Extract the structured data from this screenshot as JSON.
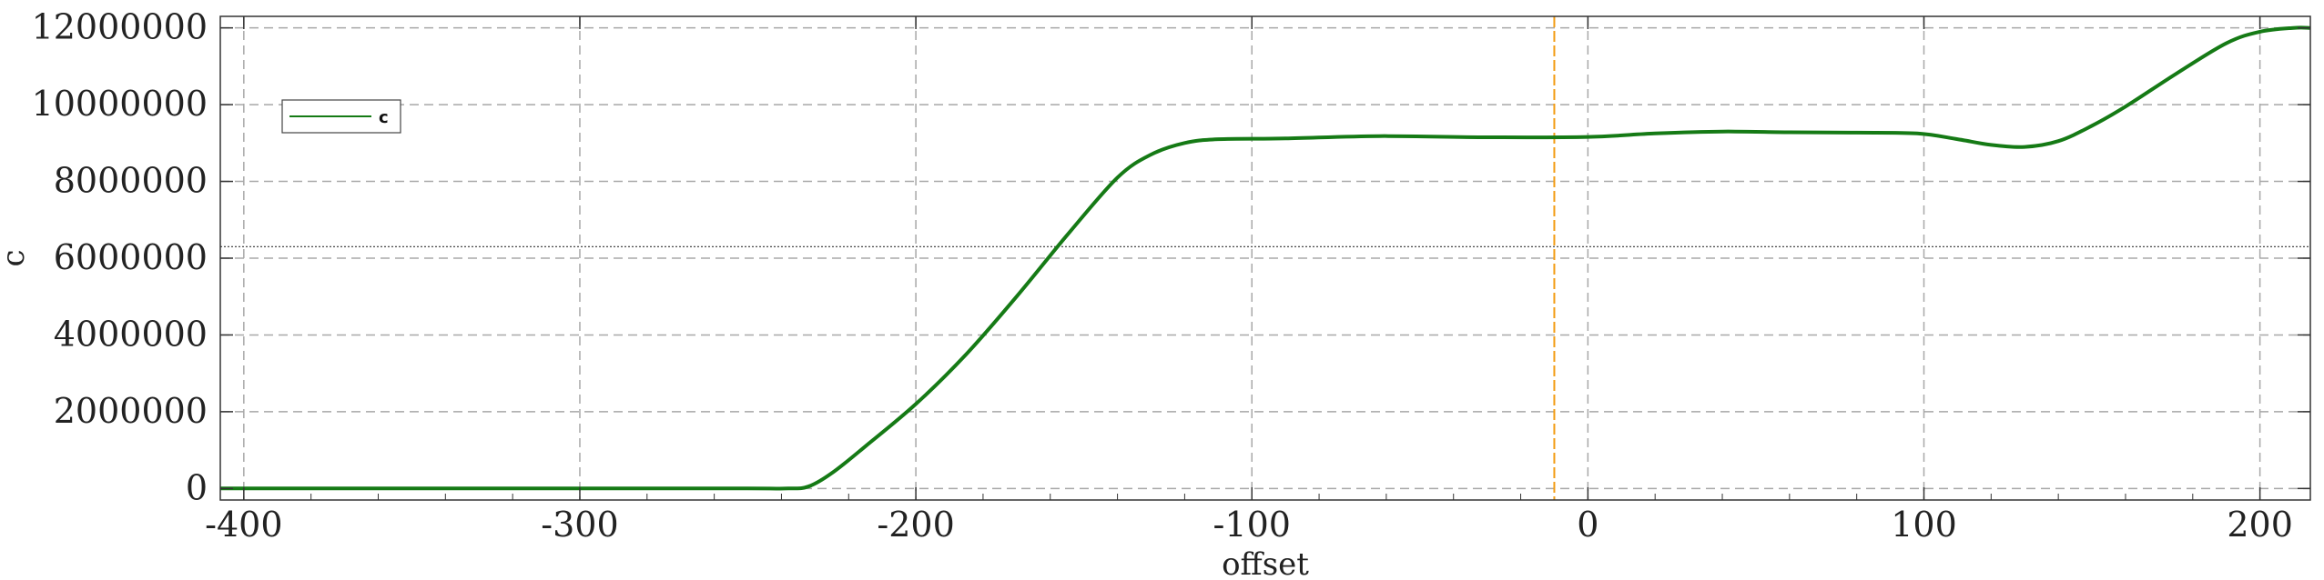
{
  "chart_data": {
    "type": "line",
    "xlabel": "offset",
    "ylabel": "c",
    "xlim": [
      -407,
      215
    ],
    "ylim": [
      -300000,
      12300000
    ],
    "xticks": [
      -400,
      -300,
      -200,
      -100,
      0,
      100,
      200
    ],
    "xtick_labels": [
      "-400",
      "-300",
      "-200",
      "-100",
      "0",
      "100",
      "200"
    ],
    "yticks": [
      0,
      2000000,
      4000000,
      6000000,
      8000000,
      10000000,
      12000000
    ],
    "ytick_labels": [
      "0",
      "2000000",
      "4000000",
      "6000000",
      "8000000",
      "10000000",
      "12000000"
    ],
    "grid": true,
    "legend_position": "upper-left",
    "series": [
      {
        "name": "c",
        "color": "#157a15",
        "x": [
          -407,
          -300,
          -250,
          -238,
          -232,
          -225,
          -215,
          -200,
          -185,
          -170,
          -155,
          -140,
          -130,
          -120,
          -110,
          -90,
          -62,
          -30,
          0,
          20,
          40,
          60,
          80,
          98,
          110,
          120,
          130,
          140,
          150,
          160,
          175,
          190,
          200,
          210,
          215
        ],
        "y": [
          0,
          0,
          0,
          0,
          50000,
          400000,
          1100000,
          2200000,
          3500000,
          5000000,
          6600000,
          8100000,
          8700000,
          9000000,
          9100000,
          9120000,
          9180000,
          9150000,
          9160000,
          9250000,
          9300000,
          9280000,
          9270000,
          9250000,
          9100000,
          8950000,
          8900000,
          9050000,
          9450000,
          9950000,
          10800000,
          11600000,
          11900000,
          12000000,
          12000000
        ]
      }
    ],
    "reference_lines": [
      {
        "orientation": "vertical",
        "x": -10,
        "color": "#f39c12",
        "style": "dashed"
      },
      {
        "orientation": "horizontal",
        "y": 6300000,
        "color": "#333333",
        "style": "dotted"
      }
    ]
  }
}
